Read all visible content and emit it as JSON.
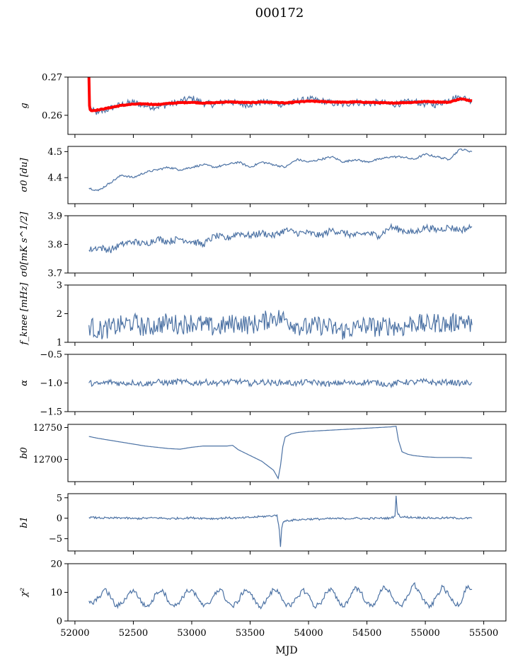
{
  "title": "000172",
  "xlabel": "MJD",
  "x_ticks": [
    "52000",
    "52500",
    "53000",
    "53500",
    "54000",
    "54500",
    "55000",
    "55500"
  ],
  "colors": {
    "blue": "#4c72a4",
    "red": "#ff0000"
  },
  "chart_data": [
    {
      "type": "line",
      "ylabel": "g",
      "ylim": [
        0.255,
        0.27
      ],
      "yticks": [
        0.26,
        0.27
      ],
      "ytick_labels": [
        "0.26",
        "0.27"
      ],
      "series": [
        {
          "color": "blue",
          "x": [
            52120,
            52150,
            52200,
            52250,
            52300,
            52400,
            52500,
            52600,
            52700,
            52800,
            52900,
            53000,
            53100,
            53200,
            53300,
            53400,
            53500,
            53600,
            53700,
            53800,
            53900,
            54000,
            54100,
            54200,
            54300,
            54400,
            54500,
            54600,
            54700,
            54800,
            54900,
            55000,
            55100,
            55200,
            55300,
            55400
          ],
          "y": [
            0.2625,
            0.2612,
            0.2605,
            0.2612,
            0.2618,
            0.2628,
            0.2634,
            0.2625,
            0.2622,
            0.2628,
            0.2636,
            0.2645,
            0.2632,
            0.2628,
            0.2638,
            0.263,
            0.2628,
            0.2635,
            0.2632,
            0.2628,
            0.2636,
            0.2642,
            0.2638,
            0.2632,
            0.2628,
            0.2635,
            0.263,
            0.2634,
            0.2628,
            0.2632,
            0.2636,
            0.263,
            0.2628,
            0.2642,
            0.2648,
            0.2638
          ]
        },
        {
          "color": "red",
          "x": [
            52120,
            52125,
            52130,
            52140,
            52200,
            52300,
            52400,
            52500,
            52600,
            52700,
            52800,
            52900,
            53000,
            53100,
            53200,
            53300,
            53400,
            53500,
            53600,
            53700,
            53800,
            53900,
            54000,
            54100,
            54200,
            54300,
            54400,
            54500,
            54600,
            54700,
            54800,
            54900,
            55000,
            55100,
            55200,
            55300,
            55400
          ],
          "y": [
            0.27,
            0.2625,
            0.2615,
            0.2612,
            0.2614,
            0.262,
            0.2626,
            0.2629,
            0.263,
            0.2628,
            0.2631,
            0.2633,
            0.2634,
            0.2632,
            0.2633,
            0.2635,
            0.2634,
            0.2633,
            0.2635,
            0.2634,
            0.2632,
            0.2635,
            0.2637,
            0.2636,
            0.2635,
            0.2634,
            0.2635,
            0.2634,
            0.2633,
            0.2632,
            0.2633,
            0.2634,
            0.2636,
            0.2635,
            0.2634,
            0.2643,
            0.2638
          ]
        }
      ]
    },
    {
      "type": "line",
      "ylabel": "σ0 [du]",
      "ylim": [
        4.3,
        4.52
      ],
      "yticks": [
        4.4,
        4.5
      ],
      "ytick_labels": [
        "4.4",
        "4.5"
      ],
      "series": [
        {
          "color": "blue",
          "x": [
            52120,
            52200,
            52300,
            52400,
            52500,
            52600,
            52700,
            52800,
            52900,
            53000,
            53100,
            53200,
            53300,
            53400,
            53500,
            53600,
            53700,
            53800,
            53900,
            54000,
            54100,
            54200,
            54300,
            54400,
            54500,
            54600,
            54700,
            54800,
            54900,
            55000,
            55100,
            55200,
            55300,
            55400
          ],
          "y": [
            4.36,
            4.35,
            4.38,
            4.41,
            4.4,
            4.42,
            4.43,
            4.44,
            4.43,
            4.44,
            4.45,
            4.44,
            4.45,
            4.46,
            4.44,
            4.46,
            4.45,
            4.44,
            4.47,
            4.46,
            4.47,
            4.48,
            4.46,
            4.47,
            4.46,
            4.47,
            4.48,
            4.48,
            4.47,
            4.49,
            4.48,
            4.47,
            4.51,
            4.5
          ]
        }
      ]
    },
    {
      "type": "line",
      "ylabel": "σ0[mK s^1/2]",
      "ylim": [
        3.7,
        3.9
      ],
      "yticks": [
        3.7,
        3.8,
        3.9
      ],
      "ytick_labels": [
        "3.7",
        "3.8",
        "3.9"
      ],
      "series": [
        {
          "color": "blue",
          "x": [
            52120,
            52200,
            52300,
            52400,
            52500,
            52600,
            52700,
            52800,
            52900,
            53000,
            53100,
            53200,
            53300,
            53400,
            53500,
            53600,
            53700,
            53800,
            53900,
            54000,
            54100,
            54200,
            54300,
            54400,
            54500,
            54600,
            54700,
            54800,
            54900,
            55000,
            55100,
            55200,
            55300,
            55400
          ],
          "y": [
            3.78,
            3.79,
            3.78,
            3.8,
            3.81,
            3.8,
            3.82,
            3.81,
            3.82,
            3.81,
            3.8,
            3.83,
            3.82,
            3.84,
            3.83,
            3.84,
            3.83,
            3.85,
            3.84,
            3.84,
            3.83,
            3.85,
            3.84,
            3.83,
            3.84,
            3.83,
            3.86,
            3.85,
            3.84,
            3.86,
            3.85,
            3.86,
            3.85,
            3.86
          ]
        }
      ]
    },
    {
      "type": "line",
      "ylabel": "f_knee [mHz]",
      "ylim": [
        1,
        3
      ],
      "yticks": [
        1,
        2,
        3
      ],
      "ytick_labels": [
        "1",
        "2",
        "3"
      ],
      "series": [
        {
          "color": "blue",
          "x": [
            52120,
            52200,
            52300,
            52400,
            52500,
            52600,
            52700,
            52800,
            52900,
            53000,
            53100,
            53200,
            53300,
            53400,
            53500,
            53600,
            53700,
            53800,
            53900,
            54000,
            54100,
            54200,
            54300,
            54400,
            54500,
            54600,
            54700,
            54800,
            54900,
            55000,
            55100,
            55200,
            55300,
            55400
          ],
          "y": [
            1.6,
            1.4,
            1.5,
            1.6,
            1.7,
            1.5,
            1.6,
            1.7,
            1.6,
            1.7,
            1.6,
            1.5,
            1.6,
            1.7,
            1.6,
            1.7,
            1.9,
            1.8,
            1.6,
            1.5,
            1.6,
            1.5,
            1.4,
            1.5,
            1.6,
            1.5,
            1.6,
            1.5,
            1.7,
            1.6,
            1.7,
            1.6,
            1.8,
            1.6
          ]
        }
      ]
    },
    {
      "type": "line",
      "ylabel": "α",
      "ylim": [
        -1.5,
        -0.5
      ],
      "yticks": [
        -1.5,
        -1.0,
        -0.5
      ],
      "ytick_labels": [
        "−1.5",
        "−1.0",
        "−0.5"
      ],
      "series": [
        {
          "color": "blue",
          "x": [
            52120,
            52200,
            52300,
            52400,
            52500,
            52600,
            52700,
            52800,
            52900,
            53000,
            53100,
            53200,
            53300,
            53400,
            53500,
            53600,
            53700,
            53800,
            53900,
            54000,
            54100,
            54200,
            54300,
            54400,
            54500,
            54600,
            54700,
            54800,
            54900,
            55000,
            55100,
            55200,
            55300,
            55400
          ],
          "y": [
            -1.0,
            -1.02,
            -0.98,
            -1.01,
            -0.99,
            -1.02,
            -0.98,
            -1.0,
            -0.97,
            -1.01,
            -0.98,
            -1.0,
            -0.99,
            -0.97,
            -1.01,
            -0.98,
            -1.0,
            -0.99,
            -1.01,
            -0.98,
            -1.0,
            -1.02,
            -0.99,
            -1.01,
            -0.98,
            -1.0,
            -1.03,
            -0.98,
            -0.99,
            -0.97,
            -1.0,
            -0.98,
            -1.01,
            -0.99
          ]
        }
      ]
    },
    {
      "type": "line",
      "ylabel": "b0",
      "ylim": [
        12665,
        12755
      ],
      "yticks": [
        12700,
        12750
      ],
      "ytick_labels": [
        "12700",
        "12750"
      ],
      "series": [
        {
          "color": "blue",
          "x": [
            52120,
            52200,
            52300,
            52400,
            52500,
            52600,
            52700,
            52800,
            52900,
            53000,
            53100,
            53200,
            53300,
            53350,
            53400,
            53500,
            53600,
            53700,
            53740,
            53760,
            53780,
            53800,
            53850,
            53900,
            54000,
            54100,
            54200,
            54300,
            54400,
            54500,
            54600,
            54700,
            54750,
            54770,
            54800,
            54850,
            54900,
            55000,
            55100,
            55200,
            55300,
            55400
          ],
          "y": [
            12736,
            12733,
            12730,
            12727,
            12724,
            12721,
            12719,
            12717,
            12716,
            12719,
            12721,
            12721,
            12721,
            12722,
            12715,
            12706,
            12697,
            12683,
            12670,
            12690,
            12720,
            12735,
            12740,
            12742,
            12744,
            12745,
            12746,
            12747,
            12748,
            12749,
            12750,
            12751,
            12752,
            12730,
            12712,
            12708,
            12706,
            12704,
            12703,
            12703,
            12703,
            12702
          ]
        }
      ]
    },
    {
      "type": "line",
      "ylabel": "b1",
      "ylim": [
        -8,
        6
      ],
      "yticks": [
        -5,
        0,
        5
      ],
      "ytick_labels": [
        "−5",
        "0",
        "5"
      ],
      "series": [
        {
          "color": "blue",
          "x": [
            52120,
            52200,
            52300,
            52400,
            52500,
            52600,
            52700,
            52800,
            52900,
            53000,
            53100,
            53200,
            53300,
            53400,
            53500,
            53600,
            53700,
            53730,
            53750,
            53760,
            53770,
            53780,
            53800,
            53900,
            54000,
            54100,
            54200,
            54300,
            54400,
            54500,
            54600,
            54700,
            54740,
            54750,
            54760,
            54780,
            54800,
            54900,
            55000,
            55100,
            55200,
            55300,
            55400
          ],
          "y": [
            0.2,
            0.1,
            0.0,
            0.1,
            -0.1,
            0.0,
            0.1,
            -0.1,
            0.0,
            0.1,
            0.0,
            -0.1,
            0.1,
            0.0,
            0.2,
            0.4,
            0.6,
            0.8,
            -3.0,
            -7.0,
            -2.5,
            -1.2,
            -0.6,
            -0.4,
            -0.2,
            -0.2,
            -0.1,
            -0.1,
            0.0,
            -0.1,
            0.0,
            0.0,
            0.5,
            5.5,
            1.5,
            0.5,
            0.3,
            0.2,
            0.1,
            0.0,
            0.1,
            0.0,
            0.0
          ]
        }
      ]
    },
    {
      "type": "line",
      "ylabel": "χ²",
      "ylim": [
        0,
        20
      ],
      "yticks": [
        0,
        10,
        20
      ],
      "ytick_labels": [
        "0",
        "10",
        "20"
      ],
      "series": [
        {
          "color": "blue",
          "x": [
            52120,
            52150,
            52200,
            52250,
            52300,
            52350,
            52400,
            52450,
            52500,
            52550,
            52600,
            52650,
            52700,
            52750,
            52800,
            52850,
            52900,
            52950,
            53000,
            53050,
            53100,
            53150,
            53200,
            53250,
            53300,
            53350,
            53400,
            53450,
            53500,
            53550,
            53600,
            53650,
            53700,
            53750,
            53800,
            53850,
            53900,
            53950,
            54000,
            54050,
            54100,
            54150,
            54200,
            54250,
            54300,
            54350,
            54400,
            54450,
            54500,
            54550,
            54600,
            54650,
            54700,
            54750,
            54800,
            54850,
            54900,
            54950,
            55000,
            55050,
            55100,
            55150,
            55200,
            55250,
            55300,
            55350,
            55400
          ],
          "y": [
            7,
            6,
            8,
            11,
            9,
            5,
            6,
            9,
            11,
            8,
            5,
            6,
            10,
            11,
            7,
            5,
            7,
            10,
            11,
            8,
            5,
            6,
            10,
            11,
            7,
            5,
            7,
            11,
            10,
            6,
            5,
            8,
            11,
            10,
            6,
            5,
            8,
            11,
            9,
            5,
            6,
            10,
            11,
            7,
            5,
            8,
            12,
            10,
            6,
            5,
            9,
            12,
            10,
            6,
            5,
            9,
            13,
            10,
            6,
            5,
            9,
            12,
            9,
            6,
            6,
            12,
            11
          ]
        }
      ]
    }
  ]
}
